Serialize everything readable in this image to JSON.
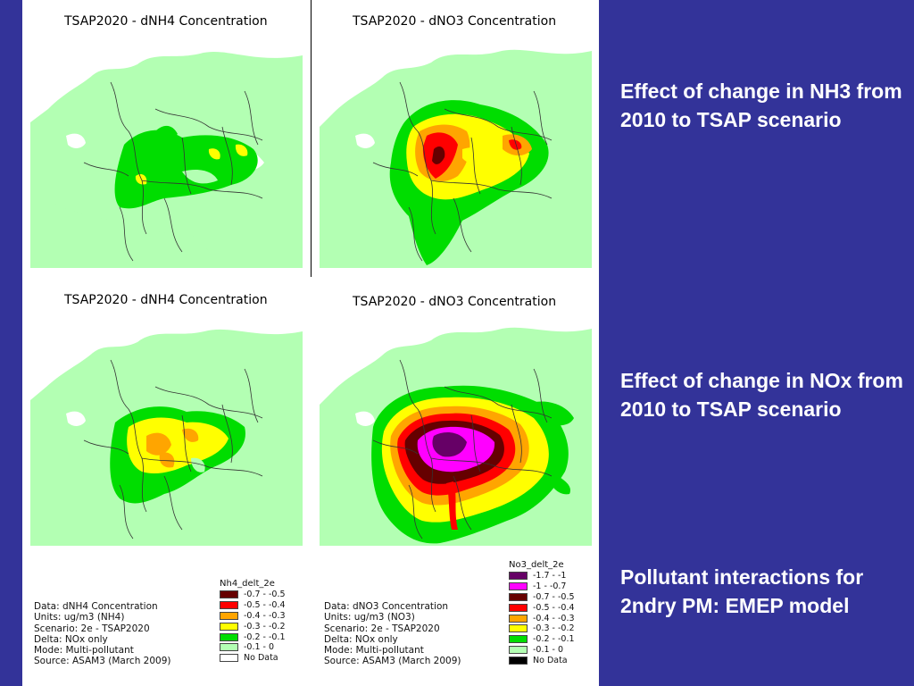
{
  "maps": [
    {
      "title": "TSAP2020 - dNH4 Concentration"
    },
    {
      "title": "TSAP2020 - dNO3 Concentration"
    },
    {
      "title": "TSAP2020 - dNH4 Concentration"
    },
    {
      "title": "TSAP2020 - dNO3 Concentration"
    }
  ],
  "info_nh4": [
    "Data: dNH4 Concentration",
    "Units: ug/m3 (NH4)",
    "Scenario: 2e - TSAP2020",
    "Delta: NOx only",
    "Mode: Multi-pollutant",
    "Source: ASAM3 (March 2009)"
  ],
  "info_no3": [
    "Data: dNO3 Concentration",
    "Units: ug/m3 (NO3)",
    "Scenario: 2e - TSAP2020",
    "Delta: NOx only",
    "Mode: Multi-pollutant",
    "Source: ASAM3 (March 2009)"
  ],
  "legend_nh4": {
    "title": "Nh4_delt_2e",
    "items": [
      {
        "label": "-0.7 - -0.5",
        "color": "#660000"
      },
      {
        "label": "-0.5 - -0.4",
        "color": "#ff0000"
      },
      {
        "label": "-0.4 - -0.3",
        "color": "#ffa500"
      },
      {
        "label": "-0.3 - -0.2",
        "color": "#ffff00"
      },
      {
        "label": "-0.2 - -0.1",
        "color": "#00dd00"
      },
      {
        "label": "-0.1 - 0",
        "color": "#b3ffb3"
      },
      {
        "label": "No Data",
        "color": "#ffffff"
      }
    ]
  },
  "legend_no3": {
    "title": "No3_delt_2e",
    "items": [
      {
        "label": "-1.7 - -1",
        "color": "#660066"
      },
      {
        "label": "-1 - -0.7",
        "color": "#ff00ff"
      },
      {
        "label": "-0.7 - -0.5",
        "color": "#660000"
      },
      {
        "label": "-0.5 - -0.4",
        "color": "#ff0000"
      },
      {
        "label": "-0.4 - -0.3",
        "color": "#ffa500"
      },
      {
        "label": "-0.3 - -0.2",
        "color": "#ffff00"
      },
      {
        "label": "-0.2 - -0.1",
        "color": "#00dd00"
      },
      {
        "label": "-0.1 - 0",
        "color": "#b3ffb3"
      },
      {
        "label": "No Data",
        "color": "#000000"
      }
    ]
  },
  "captions": {
    "first": "Effect of change in NH3 from 2010 to TSAP scenario",
    "second": "Effect of change in NOx from 2010 to TSAP scenario",
    "third": "Pollutant interactions for 2ndry PM: EMEP model"
  },
  "colors": {
    "background": "#333399",
    "sea": "#ffffff",
    "land": "#b3ffb3",
    "border": "#333333"
  }
}
